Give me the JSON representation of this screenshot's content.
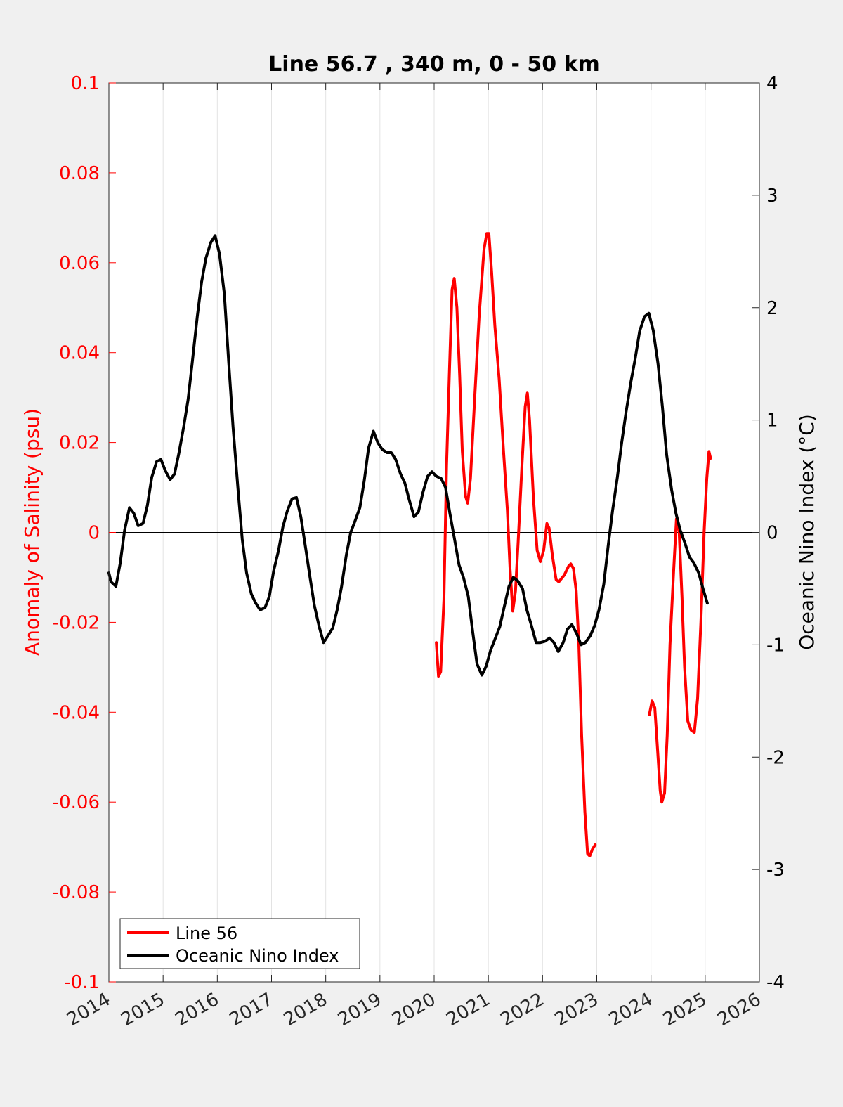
{
  "chart_data": {
    "type": "line",
    "title": "Line 56.7 , 340 m, 0 - 50 km",
    "xlabel": "",
    "ylabel_left": "Anomaly of Salinity (psu)",
    "ylabel_right": "Oceanic Nino Index (°C)",
    "xlim": [
      2014,
      2026
    ],
    "ylim_left": [
      -0.1,
      0.1
    ],
    "ylim_right": [
      -4,
      4
    ],
    "x_ticks": [
      "2014",
      "2015",
      "2016",
      "2017",
      "2018",
      "2019",
      "2020",
      "2021",
      "2022",
      "2023",
      "2024",
      "2025",
      "2026"
    ],
    "y_left_ticks": [
      "0.1",
      "0.08",
      "0.06",
      "0.04",
      "0.02",
      "0",
      "-0.02",
      "-0.04",
      "-0.06",
      "-0.08",
      "-0.1"
    ],
    "y_right_ticks": [
      "4",
      "3",
      "2",
      "1",
      "0",
      "-1",
      "-2",
      "-3",
      "-4"
    ],
    "grid": "vertical",
    "zero_line": true,
    "legend": {
      "position": "bottom-left",
      "items": [
        "Line 56",
        "Oceanic Nino Index"
      ]
    },
    "colors": {
      "salinity": "#ff0000",
      "oni": "#000000",
      "left_axis": "#ff0000",
      "right_axis": "#000000"
    },
    "series": [
      {
        "name": "Line 56",
        "axis": "left",
        "color": "#ff0000",
        "segments": [
          [
            [
              2020.04,
              -0.0245
            ],
            [
              2020.08,
              -0.032
            ],
            [
              2020.12,
              -0.031
            ],
            [
              2020.18,
              -0.015
            ],
            [
              2020.23,
              0.015
            ],
            [
              2020.28,
              0.035
            ],
            [
              2020.33,
              0.054
            ],
            [
              2020.37,
              0.0565
            ],
            [
              2020.42,
              0.05
            ],
            [
              2020.47,
              0.035
            ],
            [
              2020.52,
              0.018
            ],
            [
              2020.58,
              0.008
            ],
            [
              2020.62,
              0.0065
            ],
            [
              2020.67,
              0.012
            ],
            [
              2020.74,
              0.028
            ],
            [
              2020.83,
              0.048
            ],
            [
              2020.92,
              0.063
            ],
            [
              2020.97,
              0.0665
            ],
            [
              2021.01,
              0.0665
            ],
            [
              2021.06,
              0.058
            ],
            [
              2021.12,
              0.046
            ],
            [
              2021.2,
              0.034
            ],
            [
              2021.28,
              0.018
            ],
            [
              2021.35,
              0.005
            ],
            [
              2021.4,
              -0.008
            ],
            [
              2021.45,
              -0.0175
            ],
            [
              2021.5,
              -0.013
            ],
            [
              2021.55,
              -0.002
            ],
            [
              2021.62,
              0.015
            ],
            [
              2021.68,
              0.028
            ],
            [
              2021.72,
              0.031
            ],
            [
              2021.76,
              0.025
            ],
            [
              2021.83,
              0.008
            ],
            [
              2021.9,
              -0.004
            ],
            [
              2021.96,
              -0.0065
            ],
            [
              2022.02,
              -0.004
            ],
            [
              2022.08,
              0.002
            ],
            [
              2022.12,
              0.001
            ],
            [
              2022.18,
              -0.005
            ],
            [
              2022.25,
              -0.0105
            ],
            [
              2022.3,
              -0.011
            ],
            [
              2022.4,
              -0.0095
            ],
            [
              2022.48,
              -0.0075
            ],
            [
              2022.52,
              -0.007
            ],
            [
              2022.57,
              -0.008
            ],
            [
              2022.62,
              -0.013
            ],
            [
              2022.67,
              -0.025
            ],
            [
              2022.72,
              -0.045
            ],
            [
              2022.78,
              -0.062
            ],
            [
              2022.83,
              -0.0715
            ],
            [
              2022.87,
              -0.072
            ],
            [
              2022.92,
              -0.0705
            ],
            [
              2022.97,
              -0.0695
            ]
          ],
          [
            [
              2023.97,
              -0.0405
            ],
            [
              2024.02,
              -0.0375
            ],
            [
              2024.07,
              -0.039
            ],
            [
              2024.12,
              -0.048
            ],
            [
              2024.17,
              -0.0575
            ],
            [
              2024.2,
              -0.06
            ],
            [
              2024.25,
              -0.058
            ],
            [
              2024.3,
              -0.045
            ],
            [
              2024.35,
              -0.025
            ],
            [
              2024.42,
              -0.008
            ],
            [
              2024.47,
              0.003
            ],
            [
              2024.52,
              0.0
            ],
            [
              2024.57,
              -0.014
            ],
            [
              2024.62,
              -0.03
            ],
            [
              2024.68,
              -0.042
            ],
            [
              2024.74,
              -0.044
            ],
            [
              2024.8,
              -0.0445
            ],
            [
              2024.86,
              -0.037
            ],
            [
              2024.92,
              -0.02
            ],
            [
              2024.98,
              0.0
            ],
            [
              2025.03,
              0.012
            ],
            [
              2025.07,
              0.018
            ],
            [
              2025.1,
              0.0165
            ]
          ]
        ]
      },
      {
        "name": "Oceanic Nino Index",
        "axis": "right",
        "color": "#000000",
        "points": [
          [
            2014.0,
            -0.36
          ],
          [
            2014.04,
            -0.44
          ],
          [
            2014.13,
            -0.48
          ],
          [
            2014.21,
            -0.27
          ],
          [
            2014.29,
            0.02
          ],
          [
            2014.38,
            0.22
          ],
          [
            2014.46,
            0.17
          ],
          [
            2014.54,
            0.06
          ],
          [
            2014.63,
            0.08
          ],
          [
            2014.71,
            0.24
          ],
          [
            2014.79,
            0.49
          ],
          [
            2014.88,
            0.63
          ],
          [
            2014.96,
            0.65
          ],
          [
            2015.04,
            0.55
          ],
          [
            2015.13,
            0.47
          ],
          [
            2015.21,
            0.52
          ],
          [
            2015.29,
            0.7
          ],
          [
            2015.38,
            0.94
          ],
          [
            2015.46,
            1.18
          ],
          [
            2015.54,
            1.52
          ],
          [
            2015.63,
            1.92
          ],
          [
            2015.71,
            2.23
          ],
          [
            2015.79,
            2.44
          ],
          [
            2015.88,
            2.58
          ],
          [
            2015.96,
            2.64
          ],
          [
            2016.04,
            2.48
          ],
          [
            2016.13,
            2.12
          ],
          [
            2016.21,
            1.52
          ],
          [
            2016.29,
            0.94
          ],
          [
            2016.38,
            0.39
          ],
          [
            2016.46,
            -0.06
          ],
          [
            2016.54,
            -0.36
          ],
          [
            2016.63,
            -0.55
          ],
          [
            2016.71,
            -0.63
          ],
          [
            2016.79,
            -0.69
          ],
          [
            2016.88,
            -0.67
          ],
          [
            2016.96,
            -0.57
          ],
          [
            2017.04,
            -0.34
          ],
          [
            2017.13,
            -0.16
          ],
          [
            2017.21,
            0.05
          ],
          [
            2017.29,
            0.19
          ],
          [
            2017.38,
            0.3
          ],
          [
            2017.46,
            0.31
          ],
          [
            2017.54,
            0.14
          ],
          [
            2017.63,
            -0.14
          ],
          [
            2017.71,
            -0.4
          ],
          [
            2017.79,
            -0.65
          ],
          [
            2017.88,
            -0.84
          ],
          [
            2017.96,
            -0.98
          ],
          [
            2018.04,
            -0.92
          ],
          [
            2018.13,
            -0.85
          ],
          [
            2018.21,
            -0.69
          ],
          [
            2018.29,
            -0.49
          ],
          [
            2018.38,
            -0.2
          ],
          [
            2018.46,
            0.0
          ],
          [
            2018.54,
            0.1
          ],
          [
            2018.63,
            0.22
          ],
          [
            2018.71,
            0.46
          ],
          [
            2018.79,
            0.75
          ],
          [
            2018.88,
            0.9
          ],
          [
            2018.96,
            0.8
          ],
          [
            2019.04,
            0.74
          ],
          [
            2019.13,
            0.71
          ],
          [
            2019.21,
            0.71
          ],
          [
            2019.29,
            0.65
          ],
          [
            2019.38,
            0.52
          ],
          [
            2019.46,
            0.44
          ],
          [
            2019.54,
            0.29
          ],
          [
            2019.63,
            0.14
          ],
          [
            2019.71,
            0.18
          ],
          [
            2019.79,
            0.35
          ],
          [
            2019.88,
            0.5
          ],
          [
            2019.96,
            0.54
          ],
          [
            2020.04,
            0.5
          ],
          [
            2020.13,
            0.48
          ],
          [
            2020.21,
            0.4
          ],
          [
            2020.29,
            0.17
          ],
          [
            2020.38,
            -0.07
          ],
          [
            2020.46,
            -0.29
          ],
          [
            2020.54,
            -0.4
          ],
          [
            2020.63,
            -0.57
          ],
          [
            2020.71,
            -0.88
          ],
          [
            2020.79,
            -1.17
          ],
          [
            2020.88,
            -1.27
          ],
          [
            2020.96,
            -1.19
          ],
          [
            2021.04,
            -1.05
          ],
          [
            2021.13,
            -0.94
          ],
          [
            2021.21,
            -0.84
          ],
          [
            2021.29,
            -0.67
          ],
          [
            2021.38,
            -0.48
          ],
          [
            2021.46,
            -0.4
          ],
          [
            2021.54,
            -0.43
          ],
          [
            2021.63,
            -0.5
          ],
          [
            2021.71,
            -0.69
          ],
          [
            2021.79,
            -0.82
          ],
          [
            2021.88,
            -0.98
          ],
          [
            2021.96,
            -0.98
          ],
          [
            2022.04,
            -0.97
          ],
          [
            2022.13,
            -0.94
          ],
          [
            2022.21,
            -0.98
          ],
          [
            2022.29,
            -1.06
          ],
          [
            2022.38,
            -0.98
          ],
          [
            2022.46,
            -0.86
          ],
          [
            2022.54,
            -0.82
          ],
          [
            2022.63,
            -0.9
          ],
          [
            2022.71,
            -1.0
          ],
          [
            2022.79,
            -0.98
          ],
          [
            2022.88,
            -0.92
          ],
          [
            2022.96,
            -0.83
          ],
          [
            2023.04,
            -0.69
          ],
          [
            2023.13,
            -0.46
          ],
          [
            2023.21,
            -0.12
          ],
          [
            2023.29,
            0.19
          ],
          [
            2023.38,
            0.49
          ],
          [
            2023.46,
            0.8
          ],
          [
            2023.54,
            1.07
          ],
          [
            2023.63,
            1.34
          ],
          [
            2023.71,
            1.55
          ],
          [
            2023.79,
            1.79
          ],
          [
            2023.88,
            1.92
          ],
          [
            2023.96,
            1.95
          ],
          [
            2024.04,
            1.8
          ],
          [
            2024.13,
            1.5
          ],
          [
            2024.21,
            1.12
          ],
          [
            2024.29,
            0.69
          ],
          [
            2024.38,
            0.38
          ],
          [
            2024.46,
            0.17
          ],
          [
            2024.54,
            0.02
          ],
          [
            2024.63,
            -0.1
          ],
          [
            2024.71,
            -0.22
          ],
          [
            2024.79,
            -0.27
          ],
          [
            2024.88,
            -0.36
          ],
          [
            2024.96,
            -0.5
          ],
          [
            2025.04,
            -0.63
          ]
        ]
      }
    ]
  }
}
